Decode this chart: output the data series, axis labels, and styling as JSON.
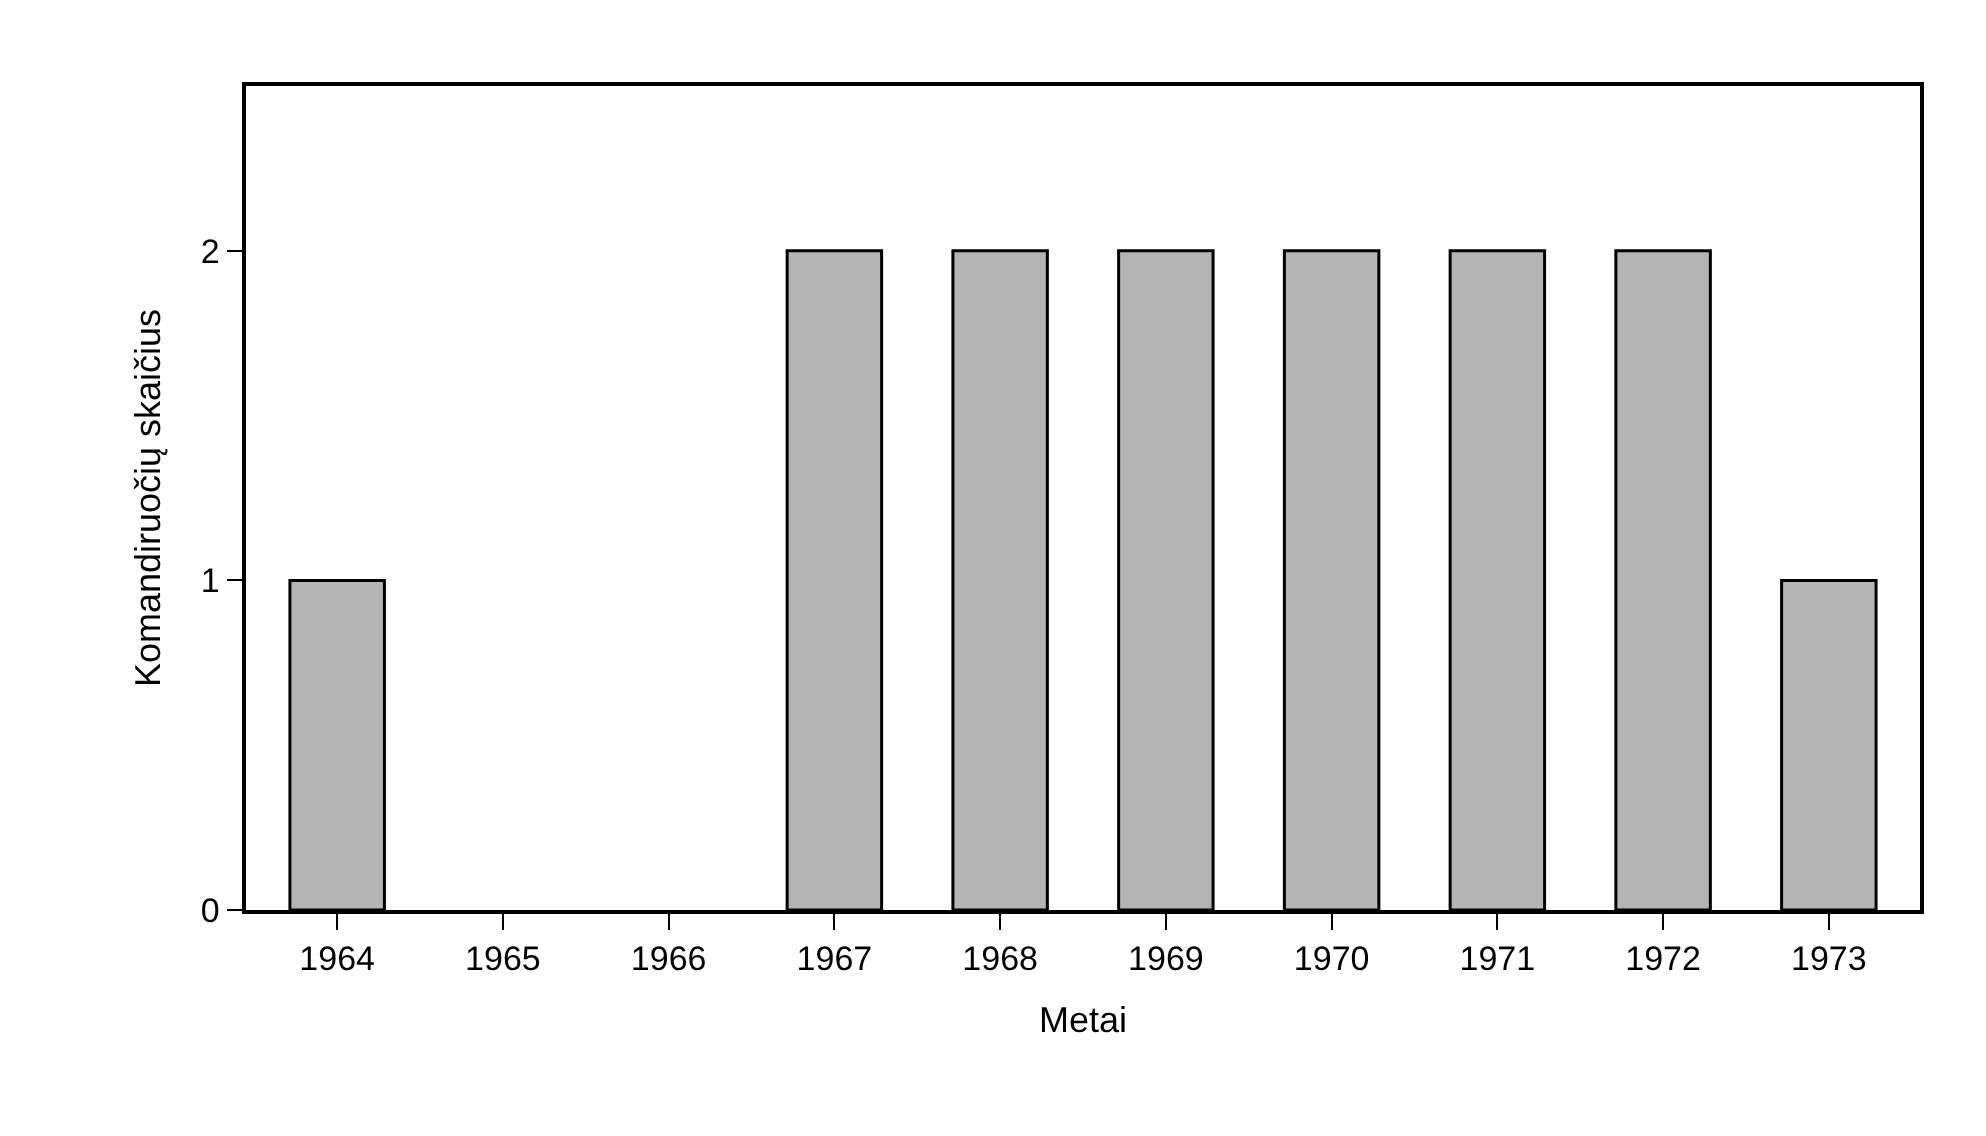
{
  "chart_data": {
    "type": "bar",
    "xlabel": "Metai",
    "ylabel": "Komandiruočių skaičius",
    "categories": [
      "1964",
      "1965",
      "1966",
      "1967",
      "1968",
      "1969",
      "1970",
      "1971",
      "1972",
      "1973"
    ],
    "values": [
      1,
      0,
      0,
      2,
      2,
      2,
      2,
      2,
      2,
      1
    ],
    "color": "#b4b4b4",
    "ylim": [
      0,
      2.5
    ],
    "yticks": [
      0,
      1,
      2
    ],
    "grid": false
  }
}
